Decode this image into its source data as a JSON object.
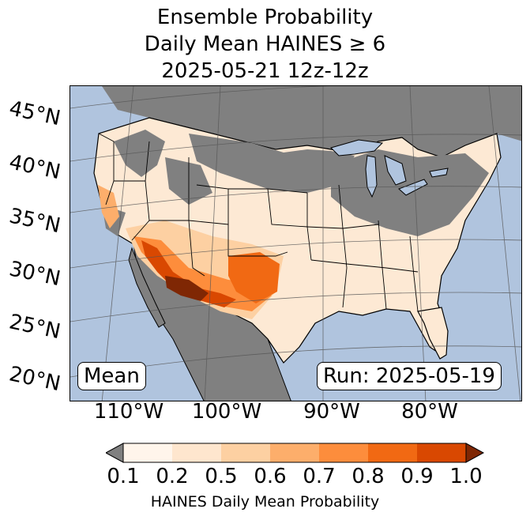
{
  "title": {
    "line1": "Ensemble Probability",
    "line2": "Daily Mean HAINES ≥ 6",
    "line3": "2025-05-21 12z-12z"
  },
  "map": {
    "lat_labels": [
      "45°N",
      "40°N",
      "35°N",
      "30°N",
      "25°N",
      "20°N"
    ],
    "lon_labels": [
      "110°W",
      "100°W",
      "90°W",
      "80°W"
    ],
    "stat_label": "Mean",
    "run_label": "Run: 2025-05-19",
    "colors": {
      "ocean": "#b0c4de",
      "land_masked": "#808080",
      "lake": "#b0c4de",
      "border": "#000000",
      "graticule": "#555555"
    }
  },
  "colorbar": {
    "ticks": [
      "0.1",
      "0.2",
      "0.5",
      "0.6",
      "0.7",
      "0.8",
      "0.9",
      "1.0"
    ],
    "colors": [
      "#fff5eb",
      "#fee6ce",
      "#fdd0a2",
      "#fdae6b",
      "#fd8d3c",
      "#f16913",
      "#d94801"
    ],
    "under_color": "#808080",
    "over_color": "#7f2704",
    "label": "HAINES Daily Mean Probability"
  }
}
